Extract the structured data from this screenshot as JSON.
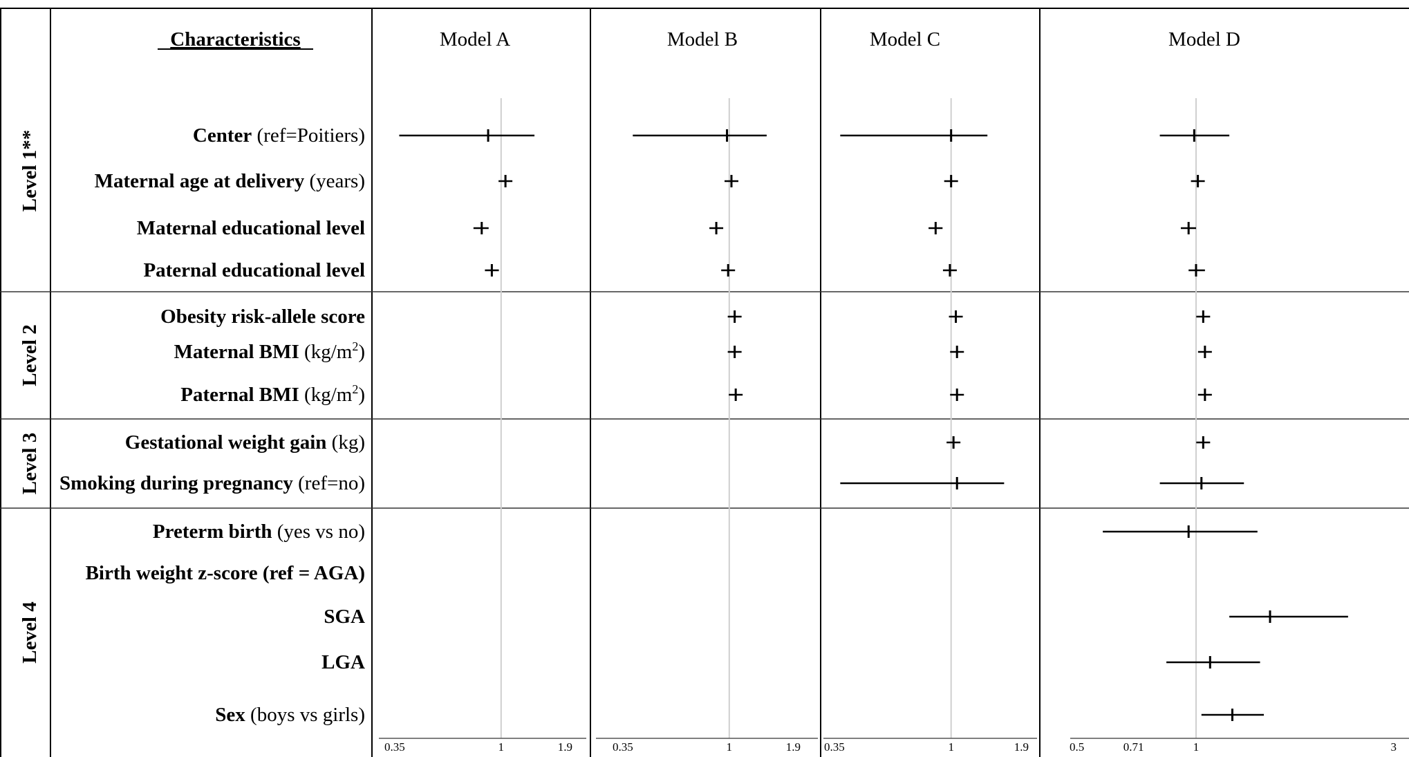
{
  "chart_data": {
    "type": "forest",
    "column_header": "Characteristics",
    "levels": [
      {
        "label": "Level 1**",
        "rows": [
          0,
          1,
          2,
          3
        ]
      },
      {
        "label": "Level 2",
        "rows": [
          4,
          5,
          6
        ]
      },
      {
        "label": "Level 3",
        "rows": [
          7,
          8
        ]
      },
      {
        "label": "Level 4",
        "rows": [
          9,
          10,
          11,
          12,
          13
        ]
      }
    ],
    "rows": [
      {
        "bold": "Center",
        "normal": " (ref=Poitiers)"
      },
      {
        "bold": "Maternal age at delivery",
        "normal": " (years)"
      },
      {
        "bold": "Maternal educational level",
        "normal": ""
      },
      {
        "bold": "Paternal educational level",
        "normal": ""
      },
      {
        "bold": "Obesity risk-allele score",
        "normal": ""
      },
      {
        "bold": "Maternal BMI",
        "normal": " (kg/m",
        "sup": "2",
        "after": ")"
      },
      {
        "bold": "Paternal BMI",
        "normal": " (kg/m",
        "sup": "2",
        "after": ")"
      },
      {
        "bold": "Gestational weight gain",
        "normal": " (kg)"
      },
      {
        "bold": "Smoking during pregnancy",
        "normal": " (ref=no)"
      },
      {
        "bold": "Preterm birth",
        "normal": " (yes vs no)"
      },
      {
        "bold": "Birth weight z-score (ref = AGA)",
        "normal": ""
      },
      {
        "bold": "SGA",
        "normal": ""
      },
      {
        "bold": "LGA",
        "normal": ""
      },
      {
        "bold": "Sex",
        "normal": " (boys vs girls)"
      }
    ],
    "models": [
      {
        "name": "Model A",
        "scale": "log",
        "xlim": [
          0.35,
          1.9
        ],
        "ref": 1,
        "ticks": [
          0.35,
          1,
          1.9
        ],
        "tick_labels": [
          "0.35",
          "1",
          "1.9"
        ],
        "estimates": [
          {
            "row": 0,
            "or": 0.89,
            "lo": 0.4,
            "hi": 1.35
          },
          {
            "row": 1,
            "or": 1.04,
            "lo": 1.04,
            "hi": 1.04
          },
          {
            "row": 2,
            "or": 0.84,
            "lo": 0.78,
            "hi": 0.89
          },
          {
            "row": 3,
            "or": 0.92,
            "lo": 0.87,
            "hi": 0.98
          }
        ]
      },
      {
        "name": "Model B",
        "scale": "log",
        "xlim": [
          0.35,
          1.9
        ],
        "ref": 1,
        "ticks": [
          0.35,
          1,
          1.9
        ],
        "tick_labels": [
          "0.35",
          "1",
          "1.9"
        ],
        "estimates": [
          {
            "row": 0,
            "or": 0.98,
            "lo": 0.42,
            "hi": 1.4
          },
          {
            "row": 1,
            "or": 1.02,
            "lo": 1.02,
            "hi": 1.02
          },
          {
            "row": 2,
            "or": 0.89,
            "lo": 0.84,
            "hi": 0.93
          },
          {
            "row": 3,
            "or": 0.99,
            "lo": 0.94,
            "hi": 1.04
          },
          {
            "row": 4,
            "or": 1.05,
            "lo": 1.02,
            "hi": 1.09
          },
          {
            "row": 5,
            "or": 1.05,
            "lo": 1.05,
            "hi": 1.05
          },
          {
            "row": 6,
            "or": 1.06,
            "lo": 1.06,
            "hi": 1.06
          }
        ]
      },
      {
        "name": "Model C",
        "scale": "log",
        "xlim": [
          0.35,
          1.9
        ],
        "ref": 1,
        "ticks": [
          0.35,
          1,
          1.9
        ],
        "tick_labels": [
          "0.35",
          "1",
          "1.9"
        ],
        "estimates": [
          {
            "row": 0,
            "or": 1.0,
            "lo": 0.4,
            "hi": 1.35
          },
          {
            "row": 1,
            "or": 1.0,
            "lo": 1.0,
            "hi": 1.0
          },
          {
            "row": 2,
            "or": 0.88,
            "lo": 0.83,
            "hi": 0.93
          },
          {
            "row": 3,
            "or": 0.99,
            "lo": 0.94,
            "hi": 1.04
          },
          {
            "row": 4,
            "or": 1.04,
            "lo": 1.01,
            "hi": 1.07
          },
          {
            "row": 5,
            "or": 1.05,
            "lo": 1.05,
            "hi": 1.05
          },
          {
            "row": 6,
            "or": 1.05,
            "lo": 1.05,
            "hi": 1.05
          },
          {
            "row": 7,
            "or": 1.02,
            "lo": 1.02,
            "hi": 1.02
          },
          {
            "row": 8,
            "or": 1.05,
            "lo": 0.4,
            "hi": 1.55
          }
        ]
      },
      {
        "name": "Model D",
        "scale": "log",
        "xlim": [
          0.5,
          3
        ],
        "ref": 1,
        "ticks": [
          0.5,
          0.71,
          1,
          3
        ],
        "tick_labels": [
          "0.5",
          "0.71",
          "1",
          "3"
        ],
        "estimates": [
          {
            "row": 0,
            "or": 0.99,
            "lo": 0.82,
            "hi": 1.2
          },
          {
            "row": 1,
            "or": 1.01,
            "lo": 1.01,
            "hi": 1.01
          },
          {
            "row": 2,
            "or": 0.96,
            "lo": 0.92,
            "hi": 1.0
          },
          {
            "row": 3,
            "or": 1.0,
            "lo": 0.96,
            "hi": 1.05
          },
          {
            "row": 4,
            "or": 1.04,
            "lo": 1.01,
            "hi": 1.07
          },
          {
            "row": 5,
            "or": 1.05,
            "lo": 1.05,
            "hi": 1.05
          },
          {
            "row": 6,
            "or": 1.05,
            "lo": 1.05,
            "hi": 1.05
          },
          {
            "row": 7,
            "or": 1.04,
            "lo": 1.04,
            "hi": 1.04
          },
          {
            "row": 8,
            "or": 1.03,
            "lo": 0.82,
            "hi": 1.3
          },
          {
            "row": 9,
            "or": 0.96,
            "lo": 0.6,
            "hi": 1.4
          },
          {
            "row": 11,
            "or": 1.5,
            "lo": 1.2,
            "hi": 2.3
          },
          {
            "row": 12,
            "or": 1.08,
            "lo": 0.85,
            "hi": 1.42
          },
          {
            "row": 13,
            "or": 1.22,
            "lo": 1.03,
            "hi": 1.45
          }
        ]
      }
    ]
  }
}
